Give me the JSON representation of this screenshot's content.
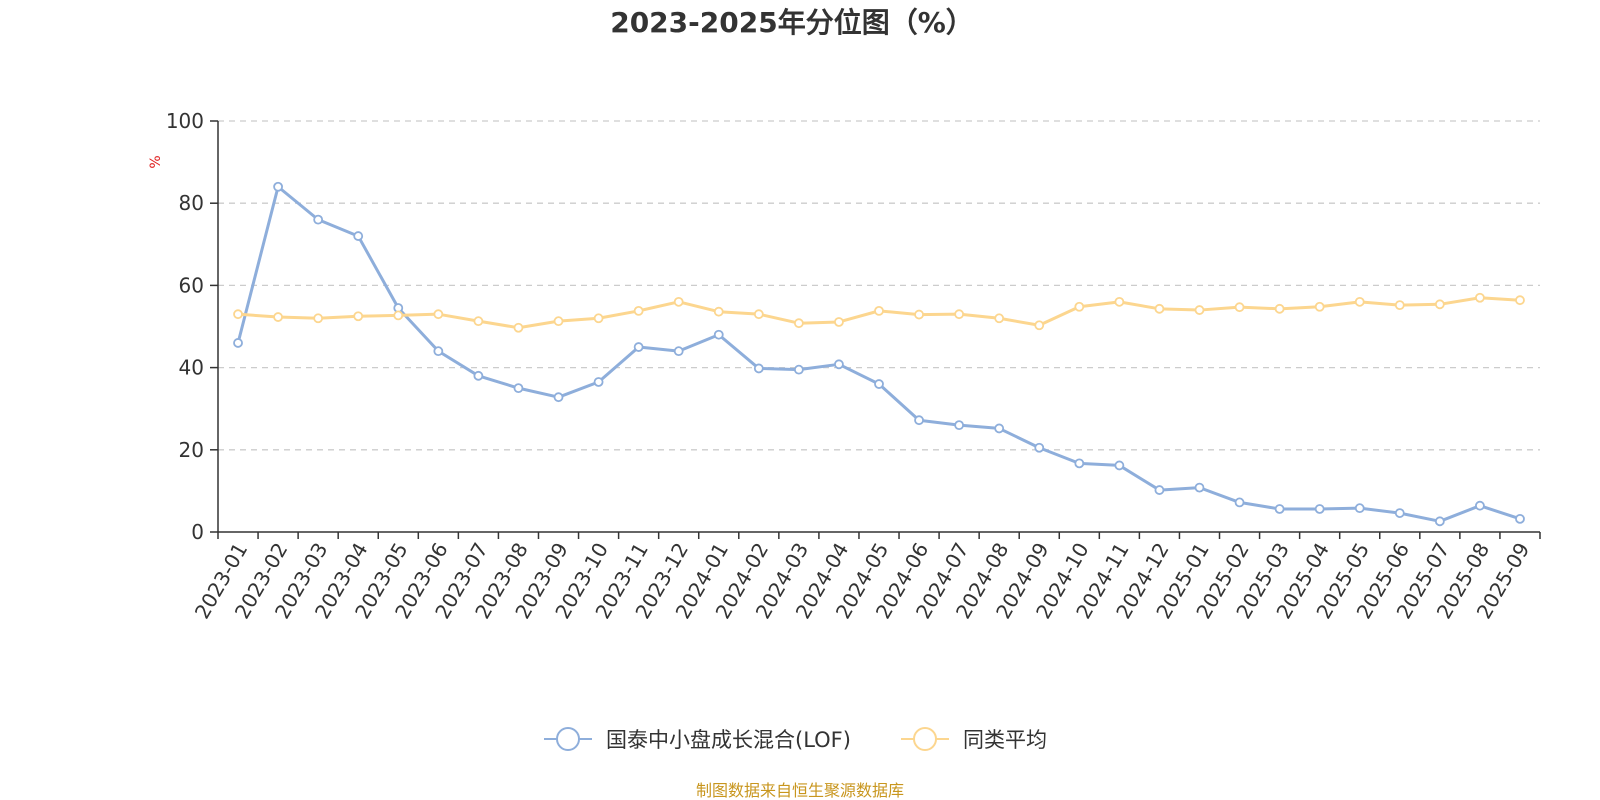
{
  "chart_data": {
    "type": "line",
    "title": "2023-2025年分位图（%）",
    "ylabel": "%",
    "xlabel": "",
    "ylim": [
      0,
      100
    ],
    "yticks": [
      0,
      20,
      40,
      60,
      80,
      100
    ],
    "grid": true,
    "legend_position": "bottom-center",
    "categories": [
      "2023-01",
      "2023-02",
      "2023-03",
      "2023-04",
      "2023-05",
      "2023-06",
      "2023-07",
      "2023-08",
      "2023-09",
      "2023-10",
      "2023-11",
      "2023-12",
      "2024-01",
      "2024-02",
      "2024-03",
      "2024-04",
      "2024-05",
      "2024-06",
      "2024-07",
      "2024-08",
      "2024-09",
      "2024-10",
      "2024-11",
      "2024-12",
      "2025-01",
      "2025-02",
      "2025-03",
      "2025-04",
      "2025-05",
      "2025-06",
      "2025-07",
      "2025-08",
      "2025-09"
    ],
    "series": [
      {
        "name": "国泰中小盘成长混合(LOF)",
        "color": "#8eaedb",
        "values": [
          46,
          84,
          76,
          72,
          54.5,
          44,
          38,
          35,
          32.8,
          36.5,
          45,
          44,
          48,
          39.8,
          39.5,
          40.8,
          36,
          27.2,
          26,
          25.2,
          20.5,
          16.7,
          16.2,
          10.2,
          10.8,
          7.2,
          5.6,
          5.6,
          5.8,
          4.6,
          2.6,
          6.4,
          3.2
        ]
      },
      {
        "name": "同类平均",
        "color": "#fcd68f",
        "values": [
          53,
          52.3,
          52,
          52.5,
          52.7,
          53,
          51.3,
          49.7,
          51.3,
          52,
          53.8,
          56,
          53.6,
          53,
          50.8,
          51.1,
          53.8,
          52.9,
          53,
          52,
          50.3,
          54.8,
          56,
          54.3,
          54,
          54.7,
          54.3,
          54.8,
          56,
          55.2,
          55.4,
          57,
          56.4
        ]
      }
    ]
  },
  "source": {
    "text": "制图数据来自恒生聚源数据库",
    "color": "#c8961e"
  },
  "ylabel_color": "#e02020",
  "grid_color": "#cccccc",
  "axis_color": "#333333"
}
